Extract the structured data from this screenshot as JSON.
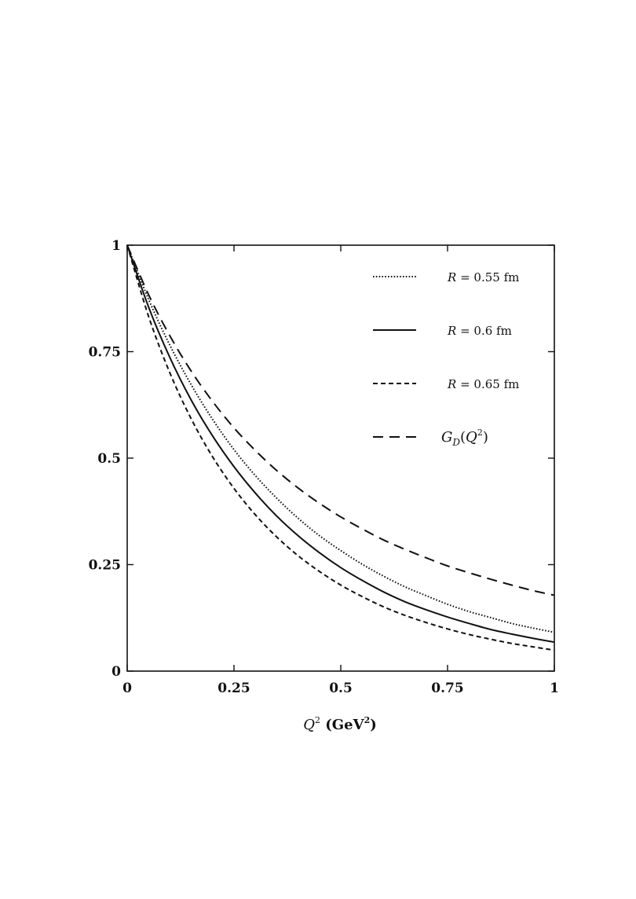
{
  "chart_data": {
    "type": "line",
    "xlabel": {
      "var": "Q",
      "sup": "2",
      "unit_open": " (",
      "unit": "GeV",
      "unit_sup": "2",
      "unit_close": ")"
    },
    "xlim": [
      0,
      1
    ],
    "ylim": [
      0,
      1
    ],
    "x_ticks": [
      {
        "value": 0,
        "label": "0"
      },
      {
        "value": 0.25,
        "label": "0.25"
      },
      {
        "value": 0.5,
        "label": "0.5"
      },
      {
        "value": 0.75,
        "label": "0.75"
      },
      {
        "value": 1,
        "label": "1"
      }
    ],
    "y_ticks": [
      {
        "value": 0,
        "label": "0"
      },
      {
        "value": 0.25,
        "label": "0.25"
      },
      {
        "value": 0.5,
        "label": "0.5"
      },
      {
        "value": 0.75,
        "label": "0.75"
      },
      {
        "value": 1,
        "label": "1"
      }
    ],
    "legend_position": "top-right",
    "grid": false,
    "x": [
      0,
      0.05,
      0.1,
      0.15,
      0.2,
      0.25,
      0.3,
      0.35,
      0.4,
      0.45,
      0.5,
      0.55,
      0.6,
      0.65,
      0.7,
      0.75,
      0.8,
      0.85,
      0.9,
      0.95,
      1.0
    ],
    "series": [
      {
        "key": "r055",
        "name_var": "R",
        "name_rest": " = 0.55 fm",
        "style": "dotted",
        "values": [
          1.0,
          0.873,
          0.765,
          0.672,
          0.591,
          0.52,
          0.459,
          0.406,
          0.359,
          0.318,
          0.283,
          0.251,
          0.223,
          0.198,
          0.177,
          0.157,
          0.14,
          0.126,
          0.112,
          0.101,
          0.091
        ]
      },
      {
        "key": "r06",
        "name_var": "R",
        "name_rest": " = 0.6 fm",
        "style": "solid",
        "values": [
          1.0,
          0.855,
          0.736,
          0.636,
          0.552,
          0.48,
          0.418,
          0.364,
          0.318,
          0.278,
          0.243,
          0.213,
          0.186,
          0.163,
          0.144,
          0.127,
          0.112,
          0.098,
          0.087,
          0.077,
          0.068
        ]
      },
      {
        "key": "r065",
        "name_var": "R",
        "name_rest": " = 0.65 fm",
        "style": "dashed",
        "values": [
          1.0,
          0.833,
          0.7,
          0.592,
          0.503,
          0.429,
          0.367,
          0.315,
          0.271,
          0.234,
          0.202,
          0.175,
          0.151,
          0.131,
          0.114,
          0.099,
          0.086,
          0.075,
          0.065,
          0.057,
          0.049
        ]
      },
      {
        "key": "gd",
        "name_var": "G",
        "name_sub": "D",
        "name_paren_open": "(",
        "name_arg": "Q",
        "name_arg_sup": "2",
        "name_paren_close": ")",
        "style": "longdash",
        "values": [
          1.0,
          0.884,
          0.787,
          0.704,
          0.633,
          0.571,
          0.518,
          0.471,
          0.43,
          0.394,
          0.362,
          0.334,
          0.308,
          0.286,
          0.266,
          0.247,
          0.231,
          0.216,
          0.202,
          0.189,
          0.178
        ]
      }
    ]
  }
}
